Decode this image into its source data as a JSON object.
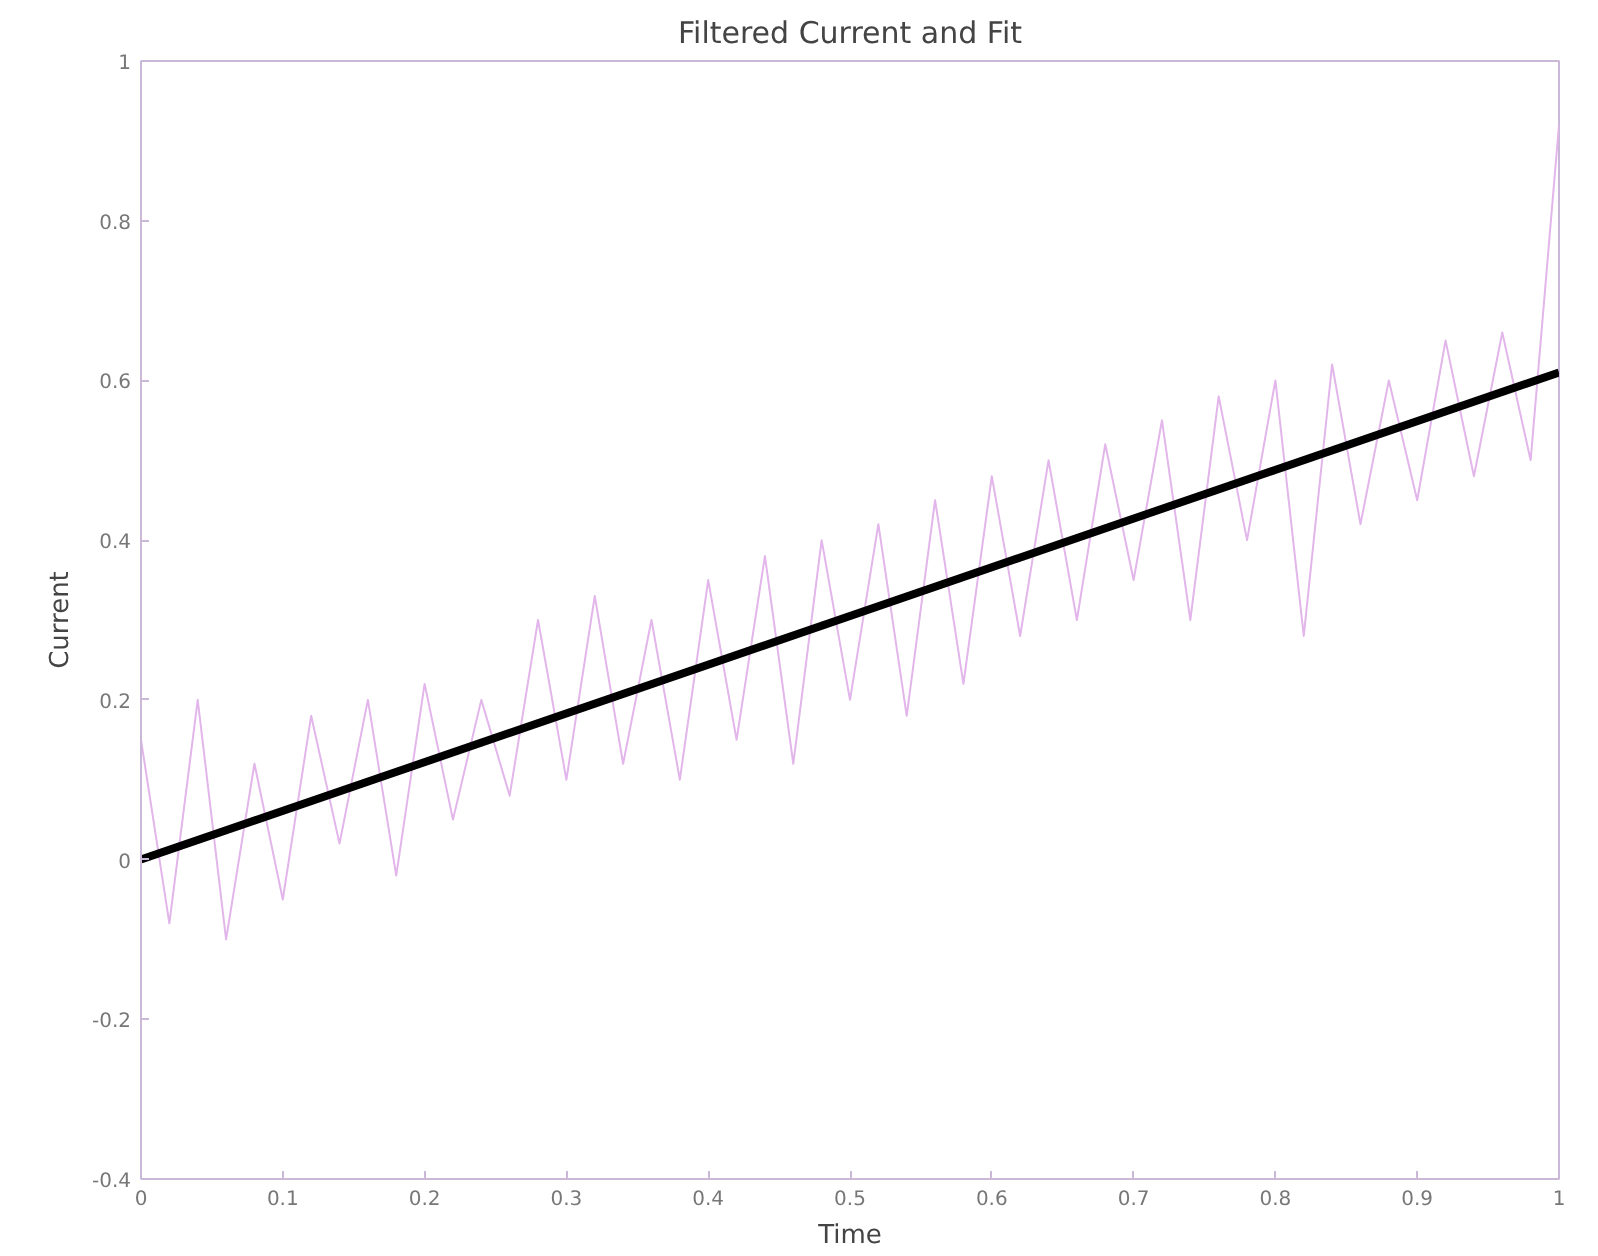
{
  "chart_data": {
    "type": "line",
    "title": "Filtered Current and Fit",
    "xlabel": "Time",
    "ylabel": "Current",
    "xlim": [
      0,
      1
    ],
    "ylim": [
      -0.4,
      1
    ],
    "xticks": [
      0,
      0.1,
      0.2,
      0.3,
      0.4,
      0.5,
      0.6,
      0.7,
      0.8,
      0.9,
      1
    ],
    "yticks": [
      -0.4,
      -0.2,
      0,
      0.2,
      0.4,
      0.6,
      0.8,
      1
    ],
    "grid": false,
    "marker": "none",
    "line_style": "solid",
    "series": [
      {
        "color": "#e2b6ea",
        "x": [
          0,
          0.02,
          0.04,
          0.06,
          0.08,
          0.1,
          0.12,
          0.14,
          0.16,
          0.18,
          0.2,
          0.22,
          0.24,
          0.26,
          0.28,
          0.3,
          0.32,
          0.34,
          0.36,
          0.38,
          0.4,
          0.42,
          0.44,
          0.46,
          0.48,
          0.5,
          0.52,
          0.54,
          0.56,
          0.58,
          0.6,
          0.62,
          0.64,
          0.66,
          0.68,
          0.7,
          0.72,
          0.74,
          0.76,
          0.78,
          0.8,
          0.82,
          0.84,
          0.86,
          0.88,
          0.9,
          0.92,
          0.94,
          0.96,
          0.98,
          1
        ],
        "values": [
          0.15,
          -0.08,
          0.2,
          -0.1,
          0.12,
          -0.05,
          0.18,
          0.02,
          0.2,
          -0.02,
          0.22,
          0.05,
          0.2,
          0.08,
          0.3,
          0.1,
          0.33,
          0.12,
          0.3,
          0.1,
          0.35,
          0.15,
          0.38,
          0.12,
          0.4,
          0.2,
          0.42,
          0.18,
          0.45,
          0.22,
          0.48,
          0.28,
          0.5,
          0.3,
          0.52,
          0.35,
          0.55,
          0.3,
          0.58,
          0.4,
          0.6,
          0.28,
          0.62,
          0.42,
          0.6,
          0.45,
          0.65,
          0.48,
          0.66,
          0.5,
          0.92
        ]
      },
      {
        "color": "#000000",
        "x": [
          0,
          1
        ],
        "values": [
          0,
          0.61
        ]
      }
    ]
  }
}
